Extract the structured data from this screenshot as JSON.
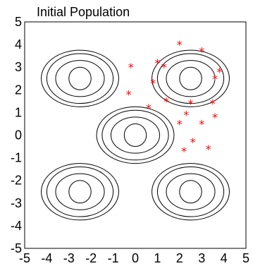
{
  "chart_data": {
    "type": "scatter",
    "title": "Initial Population",
    "xlabel": "",
    "ylabel": "",
    "xlim": [
      -5,
      5
    ],
    "ylim": [
      -5,
      5
    ],
    "x_ticks": [
      "-5",
      "-4",
      "-3",
      "-2",
      "-1",
      "0",
      "1",
      "2",
      "3",
      "4",
      "5"
    ],
    "y_ticks": [
      "5",
      "4",
      "3",
      "2",
      "1",
      "0",
      "-1",
      "-2",
      "-3",
      "-4",
      "-5"
    ],
    "marker": "*",
    "marker_color": "#ff0000",
    "points": [
      {
        "x": 2.0,
        "y": 4.0
      },
      {
        "x": 3.0,
        "y": 3.7
      },
      {
        "x": 1.0,
        "y": 3.2
      },
      {
        "x": 1.3,
        "y": 3.0
      },
      {
        "x": -0.2,
        "y": 3.0
      },
      {
        "x": 3.8,
        "y": 2.8
      },
      {
        "x": 3.6,
        "y": 2.5
      },
      {
        "x": 0.8,
        "y": 2.3
      },
      {
        "x": -0.3,
        "y": 1.8
      },
      {
        "x": 1.4,
        "y": 1.5
      },
      {
        "x": 2.5,
        "y": 1.4
      },
      {
        "x": 3.5,
        "y": 1.4
      },
      {
        "x": 0.6,
        "y": 1.2
      },
      {
        "x": 2.3,
        "y": 0.9
      },
      {
        "x": 3.6,
        "y": 0.8
      },
      {
        "x": 2.0,
        "y": 0.5
      },
      {
        "x": 3.0,
        "y": 0.5
      },
      {
        "x": 2.6,
        "y": -0.3
      },
      {
        "x": 3.3,
        "y": -0.6
      },
      {
        "x": 2.2,
        "y": -0.7
      }
    ],
    "contour_centers": [
      {
        "x": -2.5,
        "y": 2.5
      },
      {
        "x": 2.5,
        "y": 2.5
      },
      {
        "x": 0.0,
        "y": 0.0
      },
      {
        "x": -2.5,
        "y": -2.5
      },
      {
        "x": 2.5,
        "y": -2.5
      }
    ],
    "contour_radii": [
      [
        0.5,
        0.5
      ],
      [
        1.1,
        0.8
      ],
      [
        1.5,
        1.1
      ],
      [
        1.75,
        1.25
      ]
    ]
  }
}
